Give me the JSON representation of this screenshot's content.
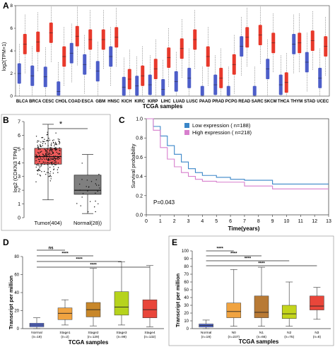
{
  "colors": {
    "tumor": "#e8392b",
    "normal": "#4d5ec9",
    "gray_box": "#7f7f7f",
    "tumor_box_b": "#ef5b5b",
    "low_expression": "#3a86c8",
    "high_expression": "#d77fcd",
    "stage_normal": "#5a6fd8",
    "stage1": "#f0a340",
    "stage2": "#c8872a",
    "stage3": "#b6d31c",
    "stage4": "#e9463a",
    "n0": "#f0a340",
    "n1": "#b87a35",
    "n2": "#c4d51c",
    "n3": "#e9463a"
  },
  "chart_data": [
    {
      "panel_letter": "A",
      "type": "box",
      "ylabel": "log2(TPM+1)",
      "xlabel": "TCGA samples",
      "ylim": [
        0,
        8
      ],
      "yticks": [
        "0",
        "2",
        "4",
        "6",
        "8"
      ],
      "categories": [
        "BLCA",
        "BRCA",
        "CESC",
        "CHOL",
        "COAD",
        "ESCA",
        "GBM",
        "HNSC",
        "KICH",
        "KIRC",
        "KIRP",
        "LIHC",
        "LUAD",
        "LUSC",
        "PAAD",
        "PRAD",
        "PCPG",
        "READ",
        "SARC",
        "SKCM",
        "THCA",
        "THYM",
        "STAD",
        "UCEC"
      ],
      "series": [
        {
          "group": "tumor",
          "medians": [
            4.6,
            4.8,
            5.6,
            3.5,
            5.3,
            5.0,
            5.0,
            5.2,
            1.5,
            1.8,
            2.4,
            3.4,
            4.2,
            5.0,
            3.5,
            1.6,
            2.8,
            5.2,
            5.4,
            4.7,
            1.2,
            4.7,
            4.9,
            4.4
          ]
        },
        {
          "group": "normal",
          "medians": [
            2.0,
            1.8,
            1.7,
            0.4,
            3.8,
            2.8,
            2.2,
            3.5,
            0.8,
            0.9,
            1.0,
            0.6,
            1.3,
            1.6,
            0.0,
            1.0,
            0.0,
            4.4,
            0.0,
            2.4,
            1.0,
            4.6,
            3.0,
            1.6
          ]
        }
      ]
    },
    {
      "panel_letter": "B",
      "type": "box",
      "ylabel": "log2 (CDKN3 TPM)",
      "yticks": [
        "0",
        "1",
        "2",
        "3",
        "4",
        "5",
        "6",
        "7"
      ],
      "ylim": [
        0,
        7
      ],
      "categories": [
        "Tumor(404)",
        "Normal(28))"
      ],
      "annotation": "*",
      "boxes": [
        {
          "q1": 3.9,
          "median": 4.45,
          "q3": 5.05,
          "min": 1.3,
          "max": 6.8
        },
        {
          "q1": 1.7,
          "median": 2.0,
          "q3": 3.1,
          "min": 0.3,
          "max": 4.6
        }
      ]
    },
    {
      "panel_letter": "C",
      "type": "line",
      "ylabel": "Survival probability",
      "xlabel": "Time(years)",
      "xlim": [
        0,
        13
      ],
      "ylim": [
        0,
        1
      ],
      "xticks": [
        "0",
        "1",
        "2",
        "3",
        "4",
        "5",
        "6",
        "7",
        "8",
        "9",
        "10",
        "11",
        "12",
        "13"
      ],
      "yticks": [
        "0.0",
        "0.2",
        "0.4",
        "0.6",
        "0.8",
        "1.0"
      ],
      "legend": [
        "Low expression ( n=188)",
        "High expression ( n=218)"
      ],
      "annotation": "P=0.043",
      "series": [
        {
          "x": [
            0,
            0.5,
            1,
            1.5,
            2,
            2.5,
            3,
            3.5,
            4,
            5,
            6,
            7,
            9,
            13
          ],
          "y": [
            1.0,
            0.92,
            0.82,
            0.72,
            0.63,
            0.55,
            0.48,
            0.44,
            0.41,
            0.39,
            0.37,
            0.36,
            0.32,
            0.32
          ]
        },
        {
          "x": [
            0,
            0.5,
            1,
            1.5,
            2,
            2.5,
            3,
            3.5,
            4,
            5,
            6,
            7,
            9,
            13
          ],
          "y": [
            1.0,
            0.88,
            0.7,
            0.58,
            0.5,
            0.44,
            0.4,
            0.37,
            0.35,
            0.34,
            0.34,
            0.3,
            0.27,
            0.27
          ]
        }
      ]
    },
    {
      "panel_letter": "D",
      "type": "box",
      "ylabel": "Transcript per million",
      "xlabel": "TCGA samples",
      "ylim": [
        0,
        80
      ],
      "yticks": [
        "0",
        "20",
        "40",
        "60",
        "80"
      ],
      "categories": [
        "Normal\n(n=19)",
        "Stage1\n(n=2)",
        "Stage2\n(n=129)",
        "Stage3\n(n=99)",
        "Stage4\n(n=132)"
      ],
      "significance": [
        "ns",
        "****",
        "****",
        "****"
      ],
      "boxes": [
        {
          "q1": 2,
          "median": 4,
          "q3": 6,
          "min": 0,
          "max": 12
        },
        {
          "q1": 10,
          "median": 17,
          "q3": 23,
          "min": 4,
          "max": 32
        },
        {
          "q1": 13,
          "median": 21,
          "q3": 29,
          "min": 3,
          "max": 67
        },
        {
          "q1": 15,
          "median": 24,
          "q3": 41,
          "min": 4,
          "max": 74
        },
        {
          "q1": 12,
          "median": 21,
          "q3": 32,
          "min": 2,
          "max": 70
        }
      ]
    },
    {
      "panel_letter": "E",
      "type": "box",
      "ylabel": "Transcript per million",
      "xlabel": "TCGA samples",
      "ylim": [
        0,
        100
      ],
      "yticks": [
        "0",
        "10",
        "20",
        "30",
        "40",
        "50",
        "60",
        "70",
        "80",
        "90",
        "100"
      ],
      "categories": [
        "Normal\n(n=19)",
        "N0\n(n=237)",
        "N1\n(n=66)",
        "N2\n(n=75)",
        "N3\n(n=8)"
      ],
      "significance": [
        "****",
        "****",
        "****",
        "****"
      ],
      "boxes": [
        {
          "q1": 2,
          "median": 4,
          "q3": 6,
          "min": 0,
          "max": 11
        },
        {
          "q1": 14,
          "median": 22,
          "q3": 33,
          "min": 3,
          "max": 76
        },
        {
          "q1": 14,
          "median": 21,
          "q3": 42,
          "min": 3,
          "max": 79
        },
        {
          "q1": 13,
          "median": 19,
          "q3": 30,
          "min": 3,
          "max": 60
        },
        {
          "q1": 24,
          "median": 29,
          "q3": 42,
          "min": 12,
          "max": 53
        }
      ]
    }
  ]
}
